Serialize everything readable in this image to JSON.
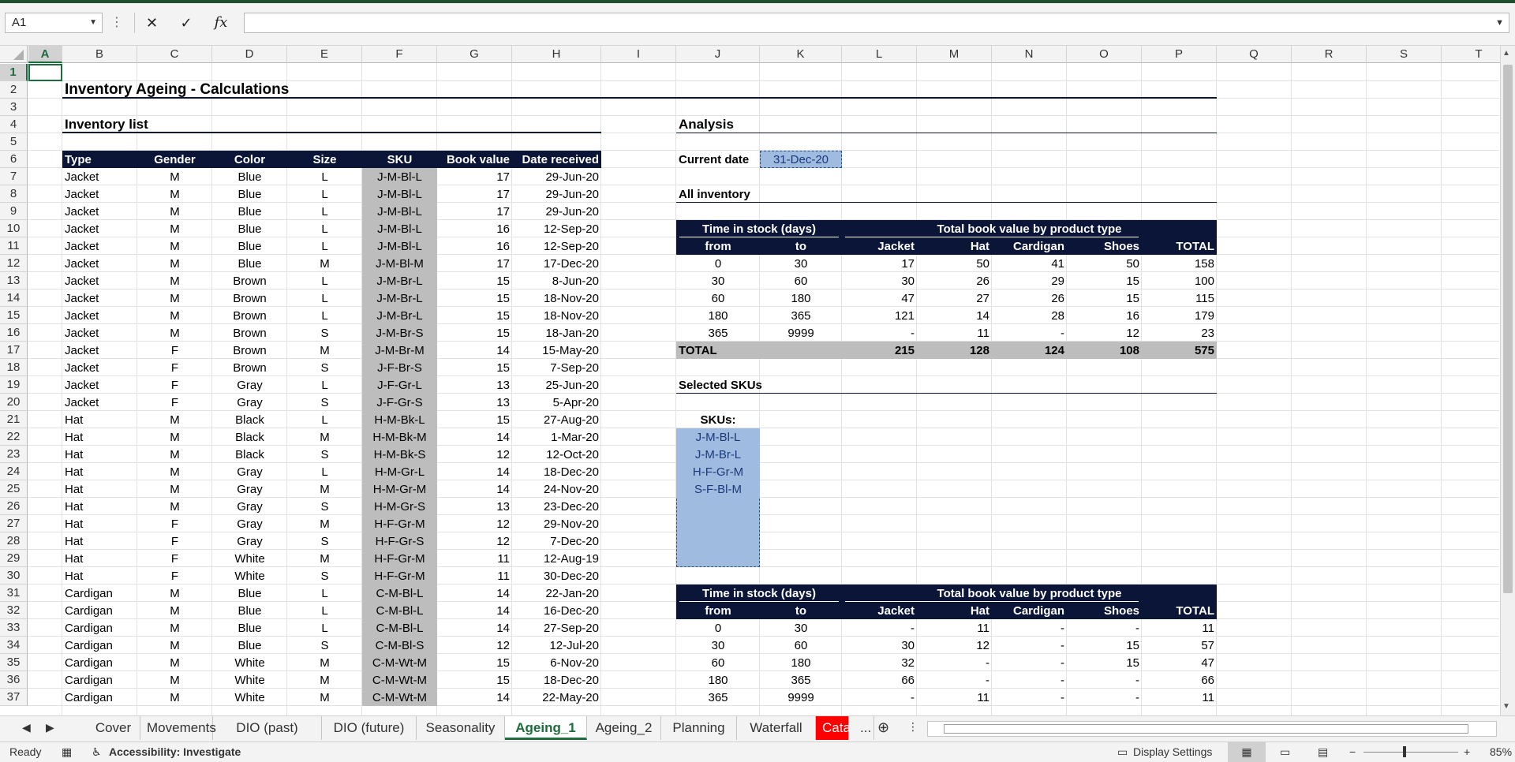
{
  "namebox": {
    "value": "A1"
  },
  "formula": {
    "value": ""
  },
  "columns": [
    "A",
    "B",
    "C",
    "D",
    "E",
    "F",
    "G",
    "H",
    "I",
    "J",
    "K",
    "L",
    "M",
    "N",
    "O",
    "P",
    "Q",
    "R",
    "S",
    "T"
  ],
  "rows": [
    "1",
    "2",
    "3",
    "4",
    "5",
    "6",
    "7",
    "8",
    "9",
    "10",
    "11",
    "12",
    "13",
    "14",
    "15",
    "16",
    "17",
    "18",
    "19",
    "20",
    "21",
    "22",
    "23",
    "24",
    "25",
    "26",
    "27",
    "28",
    "29",
    "30",
    "31",
    "32",
    "33",
    "34",
    "35",
    "36",
    "37"
  ],
  "sheet": {
    "title": "Inventory Ageing - Calculations",
    "inventory_list_label": "Inventory list",
    "inventory_headers": [
      "Type",
      "Gender",
      "Color",
      "Size",
      "SKU",
      "Book value",
      "Date received"
    ],
    "inventory": [
      [
        "Jacket",
        "M",
        "Blue",
        "L",
        "J-M-Bl-L",
        "17",
        "29-Jun-20"
      ],
      [
        "Jacket",
        "M",
        "Blue",
        "L",
        "J-M-Bl-L",
        "17",
        "29-Jun-20"
      ],
      [
        "Jacket",
        "M",
        "Blue",
        "L",
        "J-M-Bl-L",
        "17",
        "29-Jun-20"
      ],
      [
        "Jacket",
        "M",
        "Blue",
        "L",
        "J-M-Bl-L",
        "16",
        "12-Sep-20"
      ],
      [
        "Jacket",
        "M",
        "Blue",
        "L",
        "J-M-Bl-L",
        "16",
        "12-Sep-20"
      ],
      [
        "Jacket",
        "M",
        "Blue",
        "M",
        "J-M-Bl-M",
        "17",
        "17-Dec-20"
      ],
      [
        "Jacket",
        "M",
        "Brown",
        "L",
        "J-M-Br-L",
        "15",
        "8-Jun-20"
      ],
      [
        "Jacket",
        "M",
        "Brown",
        "L",
        "J-M-Br-L",
        "15",
        "18-Nov-20"
      ],
      [
        "Jacket",
        "M",
        "Brown",
        "L",
        "J-M-Br-L",
        "15",
        "18-Nov-20"
      ],
      [
        "Jacket",
        "M",
        "Brown",
        "S",
        "J-M-Br-S",
        "15",
        "18-Jan-20"
      ],
      [
        "Jacket",
        "F",
        "Brown",
        "M",
        "J-M-Br-M",
        "14",
        "15-May-20"
      ],
      [
        "Jacket",
        "F",
        "Brown",
        "S",
        "J-F-Br-S",
        "15",
        "7-Sep-20"
      ],
      [
        "Jacket",
        "F",
        "Gray",
        "L",
        "J-F-Gr-L",
        "13",
        "25-Jun-20"
      ],
      [
        "Jacket",
        "F",
        "Gray",
        "S",
        "J-F-Gr-S",
        "13",
        "5-Apr-20"
      ],
      [
        "Hat",
        "M",
        "Black",
        "L",
        "H-M-Bk-L",
        "15",
        "27-Aug-20"
      ],
      [
        "Hat",
        "M",
        "Black",
        "M",
        "H-M-Bk-M",
        "14",
        "1-Mar-20"
      ],
      [
        "Hat",
        "M",
        "Black",
        "S",
        "H-M-Bk-S",
        "12",
        "12-Oct-20"
      ],
      [
        "Hat",
        "M",
        "Gray",
        "L",
        "H-M-Gr-L",
        "14",
        "18-Dec-20"
      ],
      [
        "Hat",
        "M",
        "Gray",
        "M",
        "H-M-Gr-M",
        "14",
        "24-Nov-20"
      ],
      [
        "Hat",
        "M",
        "Gray",
        "S",
        "H-M-Gr-S",
        "13",
        "23-Dec-20"
      ],
      [
        "Hat",
        "F",
        "Gray",
        "M",
        "H-F-Gr-M",
        "12",
        "29-Nov-20"
      ],
      [
        "Hat",
        "F",
        "Gray",
        "S",
        "H-F-Gr-S",
        "12",
        "7-Dec-20"
      ],
      [
        "Hat",
        "F",
        "White",
        "M",
        "H-F-Gr-M",
        "11",
        "12-Aug-19"
      ],
      [
        "Hat",
        "F",
        "White",
        "S",
        "H-F-Gr-M",
        "11",
        "30-Dec-20"
      ],
      [
        "Cardigan",
        "M",
        "Blue",
        "L",
        "C-M-Bl-L",
        "14",
        "22-Jan-20"
      ],
      [
        "Cardigan",
        "M",
        "Blue",
        "L",
        "C-M-Bl-L",
        "14",
        "16-Dec-20"
      ],
      [
        "Cardigan",
        "M",
        "Blue",
        "L",
        "C-M-Bl-L",
        "14",
        "27-Sep-20"
      ],
      [
        "Cardigan",
        "M",
        "Blue",
        "S",
        "C-M-Bl-S",
        "12",
        "12-Jul-20"
      ],
      [
        "Cardigan",
        "M",
        "White",
        "M",
        "C-M-Wt-M",
        "15",
        "6-Nov-20"
      ],
      [
        "Cardigan",
        "M",
        "White",
        "M",
        "C-M-Wt-M",
        "15",
        "18-Dec-20"
      ],
      [
        "Cardigan",
        "M",
        "White",
        "M",
        "C-M-Wt-M",
        "14",
        "22-May-20"
      ]
    ],
    "analysis_label": "Analysis",
    "current_date_label": "Current date",
    "current_date": "31-Dec-20",
    "all_inventory_label": "All inventory",
    "table_hdr_time": "Time in stock (days)",
    "table_hdr_total": "Total book value by product type",
    "table_subhdr": [
      "from",
      "to",
      "Jacket",
      "Hat",
      "Cardigan",
      "Shoes",
      "TOTAL"
    ],
    "all_table": [
      [
        "0",
        "30",
        "17",
        "50",
        "41",
        "50",
        "158"
      ],
      [
        "30",
        "60",
        "30",
        "26",
        "29",
        "15",
        "100"
      ],
      [
        "60",
        "180",
        "47",
        "27",
        "26",
        "15",
        "115"
      ],
      [
        "180",
        "365",
        "121",
        "14",
        "28",
        "16",
        "179"
      ],
      [
        "365",
        "9999",
        "-",
        "11",
        "-",
        "12",
        "23"
      ]
    ],
    "total_label": "TOTAL",
    "all_totals": [
      "215",
      "128",
      "124",
      "108",
      "575"
    ],
    "selected_skus_label": "Selected SKUs",
    "skus_label": "SKUs:",
    "skus": [
      "J-M-Bl-L",
      "J-M-Br-L",
      "H-F-Gr-M",
      "S-F-Bl-M"
    ],
    "sel_table": [
      [
        "0",
        "30",
        "-",
        "11",
        "-",
        "-",
        "11"
      ],
      [
        "30",
        "60",
        "30",
        "12",
        "-",
        "15",
        "57"
      ],
      [
        "60",
        "180",
        "32",
        "-",
        "-",
        "15",
        "47"
      ],
      [
        "180",
        "365",
        "66",
        "-",
        "-",
        "-",
        "66"
      ],
      [
        "365",
        "9999",
        "-",
        "11",
        "-",
        "-",
        "11"
      ]
    ]
  },
  "tabs": [
    "Cover",
    "Movements",
    "DIO (past)",
    "DIO (future)",
    "Seasonality",
    "Ageing_1",
    "Ageing_2",
    "Planning",
    "Waterfall",
    "Cata",
    "..."
  ],
  "status": {
    "ready": "Ready",
    "accessibility": "Accessibility: Investigate",
    "display_settings": "Display Settings",
    "zoom": "85%"
  },
  "colors": {
    "header_fill": "#0b1538",
    "sku_fill": "#bdbdbd",
    "selection_fill": "#9fbbe0",
    "accent": "#1e6b3d"
  }
}
